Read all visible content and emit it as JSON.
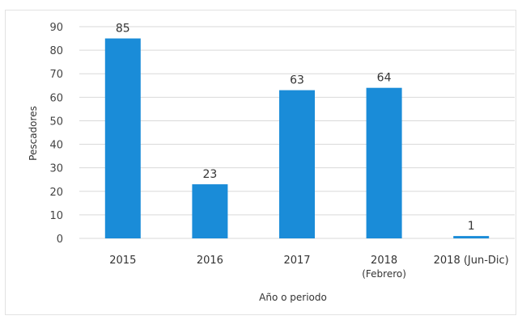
{
  "chart_data": {
    "type": "bar",
    "categories": [
      [
        "2015"
      ],
      [
        "2016"
      ],
      [
        "2017"
      ],
      [
        "2018",
        "(Febrero)"
      ],
      [
        "2018 (Jun-Dic)"
      ]
    ],
    "values": [
      85,
      23,
      63,
      64,
      1
    ],
    "data_labels": [
      "85",
      "23",
      "63",
      "64",
      "1"
    ],
    "xlabel": "Año o periodo",
    "ylabel": "Pescadores",
    "ylim": [
      0,
      90
    ],
    "yticks": [
      0,
      10,
      20,
      30,
      40,
      50,
      60,
      70,
      80,
      90
    ],
    "grid": true,
    "bar_color": "#1a8cd8",
    "grid_color": "#d9d9d9"
  }
}
